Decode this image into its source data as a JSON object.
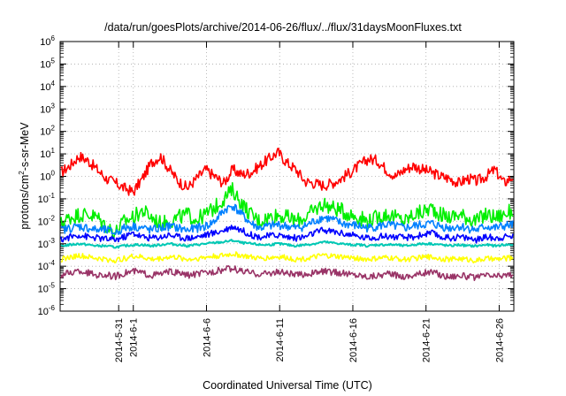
{
  "chart_data": {
    "type": "line",
    "title": "/data/run/goesPlots/archive/2014-06-26/flux/../flux/31daysMoonFluxes.txt",
    "xlabel": "Coordinated Universal Time (UTC)",
    "ylabel": "protons/cm2-s-sr-MeV",
    "ylabel_parts": {
      "pre": "protons/cm",
      "sup": "2",
      "post": "-s-sr-MeV"
    },
    "y_scale": "log",
    "ylim": [
      1e-06,
      1000000.0
    ],
    "y_ticks": [
      {
        "base": "10",
        "exp": "6"
      },
      {
        "base": "10",
        "exp": "5"
      },
      {
        "base": "10",
        "exp": "4"
      },
      {
        "base": "10",
        "exp": "3"
      },
      {
        "base": "10",
        "exp": "2"
      },
      {
        "base": "10",
        "exp": "1"
      },
      {
        "base": "10",
        "exp": "0"
      },
      {
        "base": "10",
        "exp": "-1"
      },
      {
        "base": "10",
        "exp": "-2"
      },
      {
        "base": "10",
        "exp": "-3"
      },
      {
        "base": "10",
        "exp": "-4"
      },
      {
        "base": "10",
        "exp": "-5"
      },
      {
        "base": "10",
        "exp": "-6"
      }
    ],
    "xlim": [
      "2014-05-27",
      "2014-06-27"
    ],
    "x_ticks": [
      {
        "date": "2014-05-31",
        "label": "2014-5-31"
      },
      {
        "date": "2014-06-01",
        "label": "2014-6-1"
      },
      {
        "date": "2014-06-06",
        "label": "2014-6-6"
      },
      {
        "date": "2014-06-11",
        "label": "2014-6-11"
      },
      {
        "date": "2014-06-16",
        "label": "2014-6-16"
      },
      {
        "date": "2014-06-21",
        "label": "2014-6-21"
      },
      {
        "date": "2014-06-26",
        "label": "2014-6-26"
      }
    ],
    "grid": true,
    "legend": "none",
    "series": [
      {
        "color": "#ff0000",
        "values": [
          1.5,
          3,
          8,
          5,
          2,
          0.8,
          0.5,
          0.3,
          0.2,
          0.8,
          4,
          8,
          2,
          0.6,
          0.3,
          0.8,
          2,
          1,
          0.5,
          2,
          1.2,
          1.5,
          3,
          6,
          12,
          4,
          2,
          0.6,
          0.5,
          0.4,
          0.5,
          0.8,
          1.5,
          3,
          6,
          5,
          2,
          1,
          2,
          3,
          2,
          1.5,
          1,
          0.8,
          0.5,
          0.8,
          0.6,
          1,
          2,
          0.5,
          1
        ]
      },
      {
        "color": "#00ee00",
        "values": [
          0.008,
          0.015,
          0.02,
          0.02,
          0.015,
          0.006,
          0.003,
          0.01,
          0.015,
          0.03,
          0.015,
          0.008,
          0.01,
          0.015,
          0.02,
          0.012,
          0.02,
          0.04,
          0.1,
          0.25,
          0.06,
          0.02,
          0.01,
          0.015,
          0.02,
          0.015,
          0.01,
          0.015,
          0.03,
          0.06,
          0.04,
          0.03,
          0.02,
          0.015,
          0.01,
          0.015,
          0.02,
          0.015,
          0.01,
          0.02,
          0.025,
          0.04,
          0.02,
          0.015,
          0.02,
          0.015,
          0.01,
          0.02,
          0.015,
          0.02,
          0.03
        ]
      },
      {
        "color": "#0080ff",
        "values": [
          0.004,
          0.005,
          0.006,
          0.005,
          0.004,
          0.004,
          0.003,
          0.005,
          0.006,
          0.005,
          0.004,
          0.005,
          0.006,
          0.005,
          0.004,
          0.005,
          0.006,
          0.01,
          0.03,
          0.05,
          0.02,
          0.008,
          0.005,
          0.006,
          0.007,
          0.006,
          0.005,
          0.006,
          0.01,
          0.015,
          0.012,
          0.008,
          0.007,
          0.006,
          0.005,
          0.006,
          0.007,
          0.006,
          0.005,
          0.006,
          0.007,
          0.008,
          0.006,
          0.005,
          0.006,
          0.005,
          0.004,
          0.006,
          0.005,
          0.006,
          0.007
        ]
      },
      {
        "color": "#0000ff",
        "values": [
          0.0015,
          0.002,
          0.0025,
          0.002,
          0.0018,
          0.0016,
          0.0015,
          0.002,
          0.003,
          0.002,
          0.0018,
          0.002,
          0.0025,
          0.002,
          0.0018,
          0.002,
          0.0025,
          0.003,
          0.004,
          0.006,
          0.004,
          0.0025,
          0.002,
          0.0022,
          0.0025,
          0.002,
          0.0018,
          0.002,
          0.003,
          0.004,
          0.0035,
          0.003,
          0.0025,
          0.002,
          0.0018,
          0.002,
          0.0022,
          0.002,
          0.0018,
          0.002,
          0.0025,
          0.003,
          0.002,
          0.0018,
          0.002,
          0.0018,
          0.0015,
          0.002,
          0.0018,
          0.002,
          0.0022
        ]
      },
      {
        "color": "#00c8b4",
        "values": [
          0.0008,
          0.0009,
          0.001,
          0.0009,
          0.0008,
          0.0008,
          0.0007,
          0.0008,
          0.0009,
          0.0009,
          0.0008,
          0.0009,
          0.001,
          0.0009,
          0.0008,
          0.0009,
          0.001,
          0.0011,
          0.0012,
          0.0014,
          0.0011,
          0.001,
          0.0009,
          0.0009,
          0.001,
          0.0009,
          0.0008,
          0.0009,
          0.001,
          0.0012,
          0.0011,
          0.001,
          0.0009,
          0.0009,
          0.0008,
          0.0009,
          0.0009,
          0.0009,
          0.0008,
          0.0009,
          0.001,
          0.001,
          0.0009,
          0.0008,
          0.0009,
          0.0008,
          0.0008,
          0.0009,
          0.0008,
          0.0009,
          0.0009
        ]
      },
      {
        "color": "#ffff00",
        "values": [
          0.0002,
          0.00025,
          0.0003,
          0.00025,
          0.00022,
          0.0002,
          0.00018,
          0.00022,
          0.00028,
          0.00025,
          0.0002,
          0.00022,
          0.00026,
          0.00024,
          0.0002,
          0.00022,
          0.00025,
          0.00028,
          0.0003,
          0.00035,
          0.0003,
          0.00025,
          0.00022,
          0.00024,
          0.00026,
          0.00024,
          0.0002,
          0.00022,
          0.00025,
          0.0003,
          0.00028,
          0.00026,
          0.00024,
          0.00022,
          0.0002,
          0.00022,
          0.00024,
          0.00022,
          0.0002,
          0.00022,
          0.00025,
          0.00026,
          0.00022,
          0.0002,
          0.00022,
          0.0002,
          0.00018,
          0.00022,
          0.0002,
          0.00022,
          0.00024
        ]
      },
      {
        "color": "#993366",
        "values": [
          4e-05,
          5e-05,
          6e-05,
          5e-05,
          4e-05,
          4e-05,
          3.5e-05,
          5e-05,
          6e-05,
          5e-05,
          4e-05,
          4.5e-05,
          5.5e-05,
          5e-05,
          4e-05,
          4.5e-05,
          5e-05,
          6e-05,
          7e-05,
          8e-05,
          6e-05,
          5e-05,
          4.5e-05,
          5e-05,
          5.5e-05,
          5e-05,
          4e-05,
          4.5e-05,
          5e-05,
          6e-05,
          5.5e-05,
          5e-05,
          4.5e-05,
          4e-05,
          3.5e-05,
          4e-05,
          4.5e-05,
          4e-05,
          3.5e-05,
          4e-05,
          5e-05,
          5.5e-05,
          4e-05,
          3.5e-05,
          4e-05,
          3.5e-05,
          3e-05,
          4e-05,
          3.5e-05,
          4e-05,
          4.5e-05
        ]
      }
    ]
  }
}
